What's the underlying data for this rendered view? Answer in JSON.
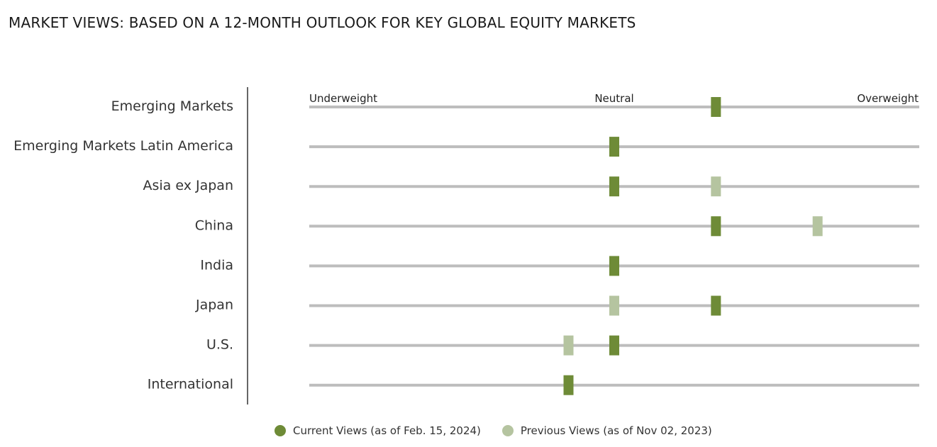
{
  "title": "MARKET VIEWS: BASED ON A 12-MONTH OUTLOOK FOR KEY GLOBAL EQUITY MARKETS",
  "chart_data": {
    "type": "scatter",
    "scale": {
      "labels": [
        "Underweight",
        "Neutral",
        "Overweight"
      ],
      "min": -3,
      "max": 3,
      "neutral": 0
    },
    "categories": [
      "Emerging Markets",
      "Emerging Markets Latin America",
      "Asia ex Japan",
      "China",
      "India",
      "Japan",
      "U.S.",
      "International"
    ],
    "series": [
      {
        "name": "Current Views (as of Feb. 15, 2024)",
        "color": "#6e8b37",
        "values": [
          1,
          0,
          0,
          1,
          0,
          1,
          0,
          -0.45
        ]
      },
      {
        "name": "Previous Views (as of Nov 02, 2023)",
        "color": "#b5c4a0",
        "values": [
          null,
          null,
          1,
          2,
          null,
          0,
          -0.45,
          null
        ]
      }
    ],
    "grid": false,
    "legend": "bottom"
  },
  "colors": {
    "track": "#bdbdbd",
    "axis": "#333333"
  }
}
